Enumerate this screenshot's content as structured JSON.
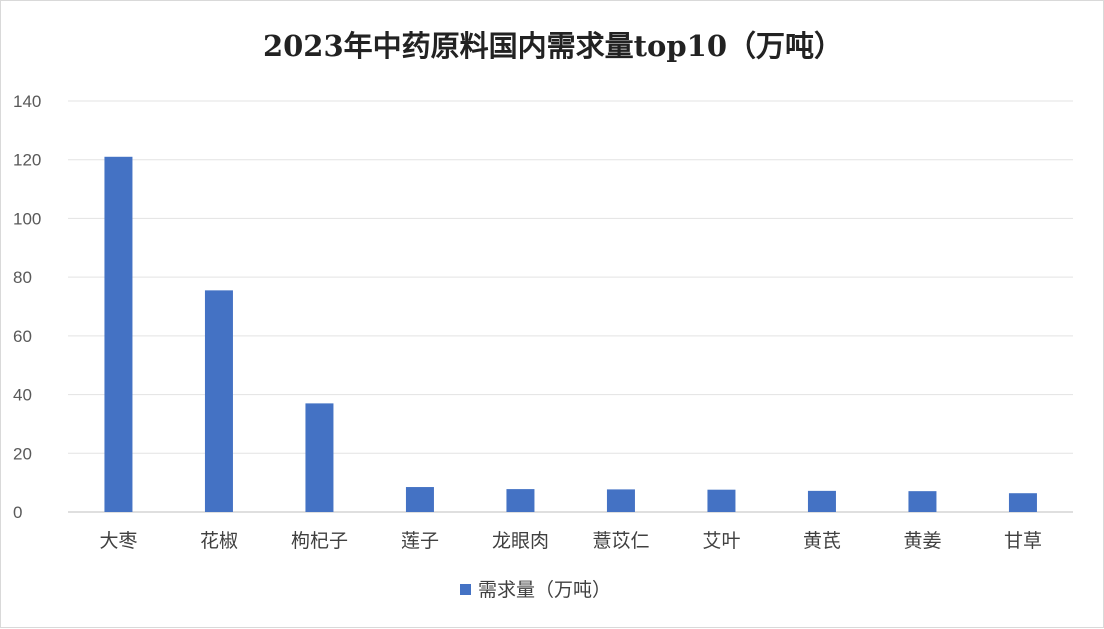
{
  "chart_data": {
    "type": "bar",
    "title": "2023年中药原料国内需求量top10（万吨）",
    "categories": [
      "大枣",
      "花椒",
      "枸杞子",
      "莲子",
      "龙眼肉",
      "薏苡仁",
      "艾叶",
      "黄芪",
      "黄姜",
      "甘草"
    ],
    "series": [
      {
        "name": "需求量（万吨）",
        "values": [
          121,
          75.5,
          37,
          8.5,
          7.8,
          7.7,
          7.6,
          7.2,
          7.1,
          6.4
        ],
        "color": "#4472C4"
      }
    ],
    "yticks": [
      "0",
      "20",
      "40",
      "60",
      "80",
      "100",
      "120",
      "140"
    ],
    "ylim": [
      0,
      140
    ],
    "grid": true,
    "legend_position": "bottom"
  }
}
